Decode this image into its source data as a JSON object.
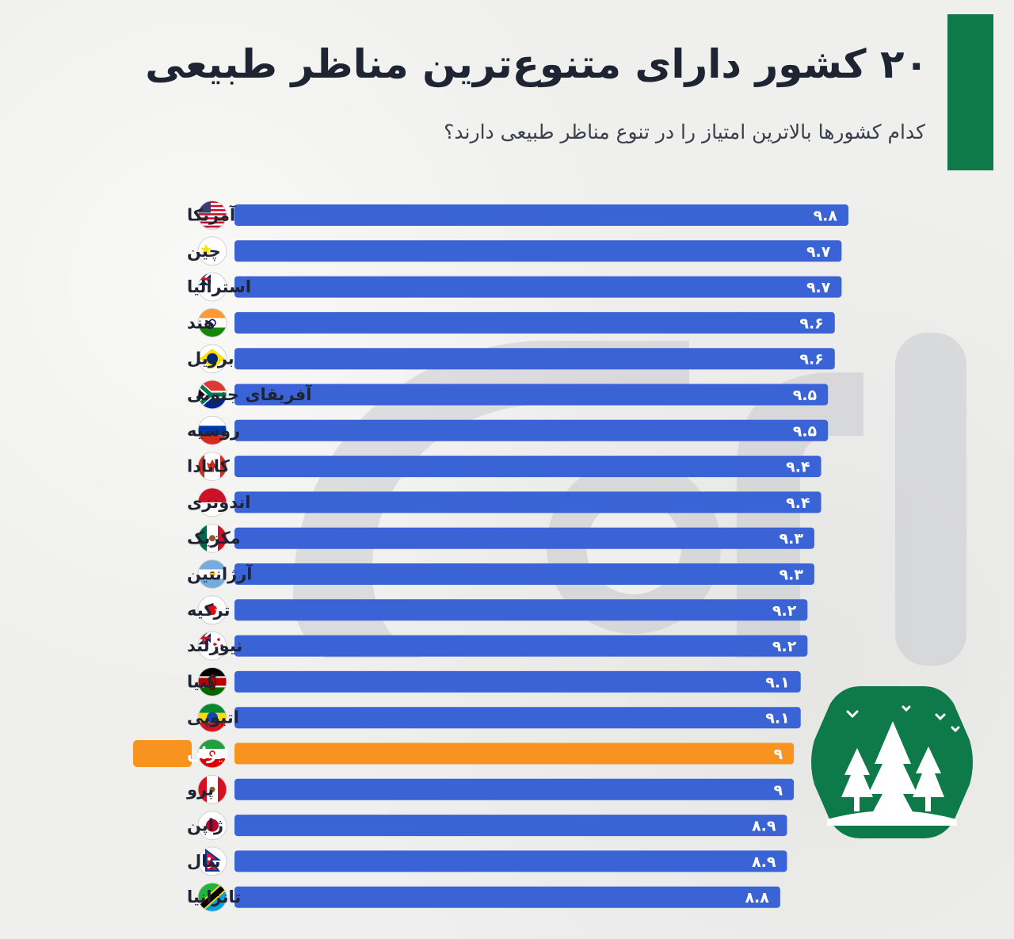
{
  "title": "۲۰ کشور دارای متنوع‌ترین مناظر طبیعی",
  "subtitle": "کدام کشورها بالاترین امتیاز را در تنوع مناظر طبیعی دارند؟",
  "colors": {
    "bar": "#3a63d6",
    "highlight": "#f7931e",
    "accent": "#0e7a4a",
    "title": "#1f2433"
  },
  "chart_data": {
    "type": "bar",
    "orientation": "horizontal",
    "categories": [
      "آمریکا",
      "چین",
      "استرالیا",
      "هند",
      "برزیل",
      "آفریقای جنوبی",
      "روسیه",
      "کانادا",
      "اندونزی",
      "مکزیک",
      "آرژانتین",
      "ترکیه",
      "نیوزلند",
      "کنیا",
      "اتیوپی",
      "ایران",
      "پرو",
      "ژاپن",
      "نپال",
      "تانزانیا"
    ],
    "values": [
      9.8,
      9.7,
      9.7,
      9.6,
      9.6,
      9.5,
      9.5,
      9.4,
      9.4,
      9.3,
      9.3,
      9.2,
      9.2,
      9.1,
      9.1,
      9.0,
      9.0,
      8.9,
      8.9,
      8.8
    ],
    "value_labels": [
      "۹.۸",
      "۹.۷",
      "۹.۷",
      "۹.۶",
      "۹.۶",
      "۹.۵",
      "۹.۵",
      "۹.۴",
      "۹.۴",
      "۹.۳",
      "۹.۳",
      "۹.۲",
      "۹.۲",
      "۹.۱",
      "۹.۱",
      "۹",
      "۹",
      "۸.۹",
      "۸.۹",
      "۸.۸"
    ],
    "highlight": "ایران",
    "flags": [
      "us",
      "cn",
      "au",
      "in",
      "br",
      "za",
      "ru",
      "ca",
      "id",
      "mx",
      "ar",
      "tr",
      "nz",
      "ke",
      "et",
      "ir",
      "pe",
      "jp",
      "np",
      "tz"
    ],
    "title": "",
    "xlabel": "",
    "ylabel": "",
    "grid": false
  }
}
